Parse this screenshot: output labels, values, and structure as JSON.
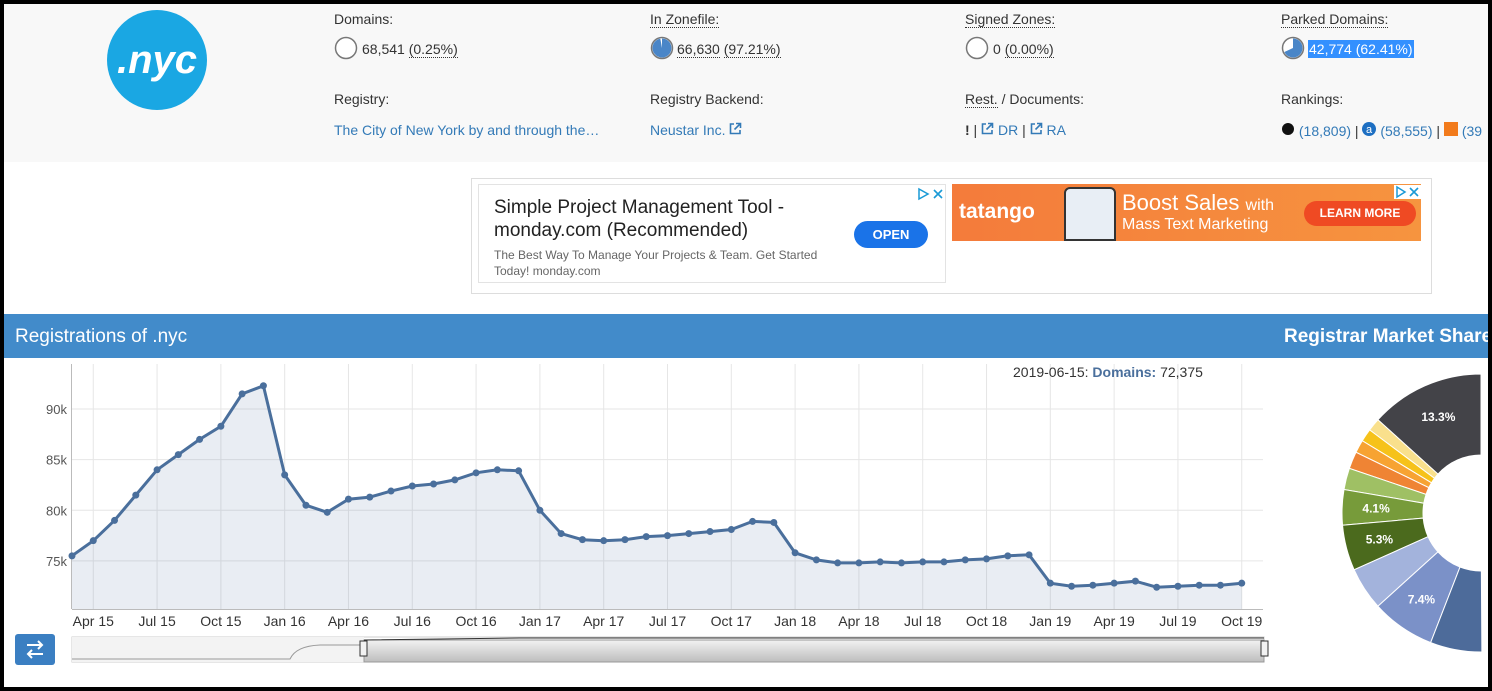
{
  "header": {
    "logo": ".nyc",
    "stats": [
      {
        "label": "Domains:",
        "value": "68,541",
        "percent": "(0.25%)"
      },
      {
        "label": "In Zonefile:",
        "value": "66,630",
        "percent": "(97.21%)"
      },
      {
        "label": "Signed Zones:",
        "value": "0",
        "percent": "(0.00%)"
      },
      {
        "label": "Parked Domains:",
        "value": "42,774 (62.41%)"
      }
    ],
    "registry": {
      "label": "Registry:",
      "value": "The City of New York by and through the…"
    },
    "backend": {
      "label": "Registry Backend:",
      "value": "Neustar Inc."
    },
    "documents": {
      "rest": "Rest.",
      "label": "/ Documents:",
      "flag": "!",
      "items": [
        "DR",
        "RA"
      ]
    },
    "rankings": {
      "label": "Rankings:",
      "items": [
        "(18,809)",
        "(58,555)",
        "(39"
      ]
    }
  },
  "ads": [
    {
      "title": "Simple Project Management Tool - monday.com (Recommended)",
      "text": "The Best Way To Manage Your Projects & Team. Get Started Today! monday.com",
      "button": "OPEN"
    },
    {
      "brand": "tatango",
      "headline": "Boost Sales",
      "with": "with",
      "sub": "Mass Text Marketing",
      "button": "LEARN MORE"
    }
  ],
  "sections": {
    "registrations": "Registrations of .nyc",
    "market": "Registrar Market Shares"
  },
  "chart_data": [
    {
      "type": "line",
      "color": "#4a6f9c",
      "x": [
        "2015-03",
        "2015-04",
        "2015-05",
        "2015-06",
        "2015-07",
        "2015-08",
        "2015-09",
        "2015-10",
        "2015-11",
        "2015-12",
        "2016-01",
        "2016-02",
        "2016-03",
        "2016-04",
        "2016-05",
        "2016-06",
        "2016-07",
        "2016-08",
        "2016-09",
        "2016-10",
        "2016-11",
        "2016-12",
        "2017-01",
        "2017-02",
        "2017-03",
        "2017-04",
        "2017-05",
        "2017-06",
        "2017-07",
        "2017-08",
        "2017-09",
        "2017-10",
        "2017-11",
        "2017-12",
        "2018-01",
        "2018-02",
        "2018-03",
        "2018-04",
        "2018-05",
        "2018-06",
        "2018-07",
        "2018-08",
        "2018-09",
        "2018-10",
        "2018-11",
        "2018-12",
        "2019-01",
        "2019-02",
        "2019-03",
        "2019-04",
        "2019-05",
        "2019-06",
        "2019-07",
        "2019-08",
        "2019-09",
        "2019-10"
      ],
      "values": [
        75500,
        77000,
        79000,
        81500,
        84000,
        85500,
        87000,
        88300,
        91500,
        92300,
        83500,
        80500,
        79800,
        81100,
        81300,
        81900,
        82400,
        82600,
        83000,
        83700,
        84000,
        83900,
        80000,
        77700,
        77100,
        77000,
        77100,
        77400,
        77500,
        77700,
        77900,
        78100,
        78900,
        78800,
        75800,
        75100,
        74800,
        74800,
        74900,
        74800,
        74900,
        74900,
        75100,
        75200,
        75500,
        75600,
        72800,
        72500,
        72600,
        72800,
        73000,
        72400,
        72500,
        72600,
        72600,
        72800
      ],
      "xlim": [
        "2015-03",
        "2019-11"
      ],
      "xticks": [
        {
          "value": "2015-04",
          "label": "Apr 15"
        },
        {
          "value": "2015-07",
          "label": "Jul 15"
        },
        {
          "value": "2015-10",
          "label": "Oct 15"
        },
        {
          "value": "2016-01",
          "label": "Jan 16"
        },
        {
          "value": "2016-04",
          "label": "Apr 16"
        },
        {
          "value": "2016-07",
          "label": "Jul 16"
        },
        {
          "value": "2016-10",
          "label": "Oct 16"
        },
        {
          "value": "2017-01",
          "label": "Jan 17"
        },
        {
          "value": "2017-04",
          "label": "Apr 17"
        },
        {
          "value": "2017-07",
          "label": "Jul 17"
        },
        {
          "value": "2017-10",
          "label": "Oct 17"
        },
        {
          "value": "2018-01",
          "label": "Jan 18"
        },
        {
          "value": "2018-04",
          "label": "Apr 18"
        },
        {
          "value": "2018-07",
          "label": "Jul 18"
        },
        {
          "value": "2018-10",
          "label": "Oct 18"
        },
        {
          "value": "2019-01",
          "label": "Jan 19"
        },
        {
          "value": "2019-04",
          "label": "Apr 19"
        },
        {
          "value": "2019-07",
          "label": "Jul 19"
        },
        {
          "value": "2019-10",
          "label": "Oct 19"
        }
      ],
      "ylim": [
        70250,
        94450
      ],
      "yticks": [
        {
          "value": 75000,
          "label": "75k"
        },
        {
          "value": 80000,
          "label": "80k"
        },
        {
          "value": 85000,
          "label": "85k"
        },
        {
          "value": 90000,
          "label": "90k"
        }
      ],
      "grid": true,
      "tooltip": {
        "date": "2019-06-15:",
        "series": "Domains:",
        "value": "72,375"
      }
    },
    {
      "type": "pie",
      "values": [
        13.3,
        1.5,
        1.5,
        1.5,
        2,
        2.5,
        4.1,
        5.3,
        5,
        7.4,
        6
      ],
      "value_labels": [
        "13.3%",
        null,
        null,
        null,
        null,
        null,
        "4.1%",
        "5.3%",
        null,
        "7.4%",
        null
      ],
      "colors": [
        "#434348",
        "#f9e08c",
        "#f6c21a",
        "#f7a332",
        "#ef8434",
        "#9fc064",
        "#779b3a",
        "#4b6a1d",
        "#a3b3dc",
        "#7b91c8",
        "#4d6b9a"
      ]
    }
  ]
}
